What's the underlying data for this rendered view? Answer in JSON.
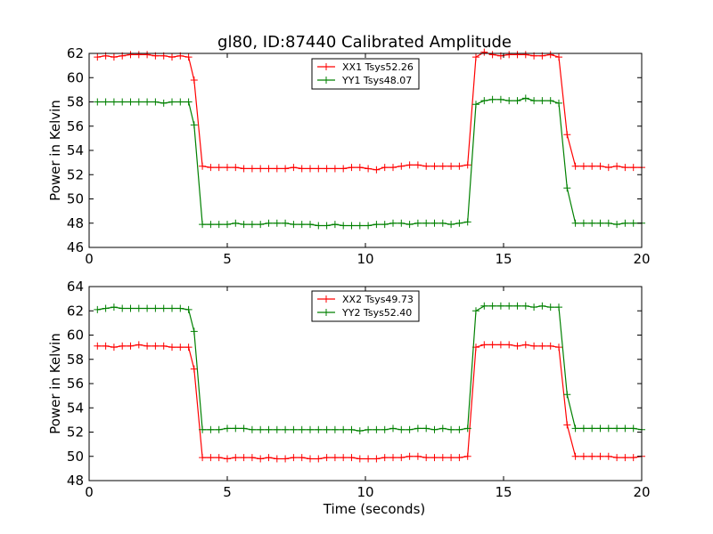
{
  "figure": {
    "title": "gl80, ID:87440 Calibrated Amplitude"
  },
  "chart_data": [
    {
      "type": "line",
      "title": "gl80, ID:87440 Calibrated Amplitude",
      "xlabel": "",
      "ylabel": "Power in Kelvin",
      "xlim": [
        0,
        20
      ],
      "ylim": [
        46,
        62
      ],
      "xticks": [
        "0",
        "5",
        "10",
        "15",
        "20"
      ],
      "yticks": [
        "46",
        "48",
        "50",
        "52",
        "54",
        "56",
        "58",
        "60",
        "62"
      ],
      "grid": false,
      "legend_position": "top-center",
      "x": [
        0.3,
        0.6,
        0.9,
        1.2,
        1.5,
        1.8,
        2.1,
        2.4,
        2.7,
        3.0,
        3.3,
        3.6,
        3.8,
        4.1,
        4.4,
        4.7,
        5.0,
        5.3,
        5.6,
        5.9,
        6.2,
        6.5,
        6.8,
        7.1,
        7.4,
        7.7,
        8.0,
        8.3,
        8.6,
        8.9,
        9.2,
        9.5,
        9.8,
        10.1,
        10.4,
        10.7,
        11.0,
        11.3,
        11.6,
        11.9,
        12.2,
        12.5,
        12.8,
        13.1,
        13.4,
        13.7,
        14.0,
        14.3,
        14.6,
        14.9,
        15.2,
        15.5,
        15.8,
        16.1,
        16.4,
        16.7,
        17.0,
        17.3,
        17.6,
        17.9,
        18.2,
        18.5,
        18.8,
        19.1,
        19.4,
        19.7,
        20.0
      ],
      "series": [
        {
          "name": "XX1 Tsys52.26",
          "color": "#ff0000",
          "values": [
            61.7,
            61.8,
            61.7,
            61.8,
            61.9,
            61.9,
            61.9,
            61.8,
            61.8,
            61.7,
            61.8,
            61.7,
            59.8,
            52.7,
            52.6,
            52.6,
            52.6,
            52.6,
            52.5,
            52.5,
            52.5,
            52.5,
            52.5,
            52.5,
            52.6,
            52.5,
            52.5,
            52.5,
            52.5,
            52.5,
            52.5,
            52.6,
            52.6,
            52.5,
            52.4,
            52.6,
            52.6,
            52.7,
            52.8,
            52.8,
            52.7,
            52.7,
            52.7,
            52.7,
            52.7,
            52.8,
            61.7,
            62.1,
            61.9,
            61.8,
            61.9,
            61.9,
            61.9,
            61.8,
            61.8,
            61.9,
            61.7,
            55.3,
            52.7,
            52.7,
            52.7,
            52.7,
            52.6,
            52.7,
            52.6,
            52.6,
            52.6
          ]
        },
        {
          "name": "YY1 Tsys48.07",
          "color": "#008000",
          "values": [
            58.0,
            58.0,
            58.0,
            58.0,
            58.0,
            58.0,
            58.0,
            58.0,
            57.9,
            58.0,
            58.0,
            58.0,
            56.1,
            47.9,
            47.9,
            47.9,
            47.9,
            48.0,
            47.9,
            47.9,
            47.9,
            48.0,
            48.0,
            48.0,
            47.9,
            47.9,
            47.9,
            47.8,
            47.8,
            47.9,
            47.8,
            47.8,
            47.8,
            47.8,
            47.9,
            47.9,
            48.0,
            48.0,
            47.9,
            48.0,
            48.0,
            48.0,
            48.0,
            47.9,
            48.0,
            48.1,
            57.8,
            58.1,
            58.2,
            58.2,
            58.1,
            58.1,
            58.3,
            58.1,
            58.1,
            58.1,
            57.9,
            50.9,
            48.0,
            48.0,
            48.0,
            48.0,
            48.0,
            47.9,
            48.0,
            48.0,
            48.0
          ]
        }
      ]
    },
    {
      "type": "line",
      "title": "",
      "xlabel": "Time (seconds)",
      "ylabel": "Power in Kelvin",
      "xlim": [
        0,
        20
      ],
      "ylim": [
        48,
        64
      ],
      "xticks": [
        "0",
        "5",
        "10",
        "15",
        "20"
      ],
      "yticks": [
        "48",
        "50",
        "52",
        "54",
        "56",
        "58",
        "60",
        "62",
        "64"
      ],
      "grid": false,
      "legend_position": "top-center",
      "x": [
        0.3,
        0.6,
        0.9,
        1.2,
        1.5,
        1.8,
        2.1,
        2.4,
        2.7,
        3.0,
        3.3,
        3.6,
        3.8,
        4.1,
        4.4,
        4.7,
        5.0,
        5.3,
        5.6,
        5.9,
        6.2,
        6.5,
        6.8,
        7.1,
        7.4,
        7.7,
        8.0,
        8.3,
        8.6,
        8.9,
        9.2,
        9.5,
        9.8,
        10.1,
        10.4,
        10.7,
        11.0,
        11.3,
        11.6,
        11.9,
        12.2,
        12.5,
        12.8,
        13.1,
        13.4,
        13.7,
        14.0,
        14.3,
        14.6,
        14.9,
        15.2,
        15.5,
        15.8,
        16.1,
        16.4,
        16.7,
        17.0,
        17.3,
        17.6,
        17.9,
        18.2,
        18.5,
        18.8,
        19.1,
        19.4,
        19.7,
        20.0
      ],
      "series": [
        {
          "name": "XX2 Tsys49.73",
          "color": "#ff0000",
          "values": [
            59.1,
            59.1,
            59.0,
            59.1,
            59.1,
            59.2,
            59.1,
            59.1,
            59.1,
            59.0,
            59.0,
            59.0,
            57.2,
            49.9,
            49.9,
            49.9,
            49.8,
            49.9,
            49.9,
            49.9,
            49.8,
            49.9,
            49.8,
            49.8,
            49.9,
            49.9,
            49.8,
            49.8,
            49.9,
            49.9,
            49.9,
            49.9,
            49.8,
            49.8,
            49.8,
            49.9,
            49.9,
            49.9,
            50.0,
            50.0,
            49.9,
            49.9,
            49.9,
            49.9,
            49.9,
            50.0,
            59.0,
            59.2,
            59.2,
            59.2,
            59.2,
            59.1,
            59.2,
            59.1,
            59.1,
            59.1,
            59.0,
            52.6,
            50.0,
            50.0,
            50.0,
            50.0,
            50.0,
            49.9,
            49.9,
            49.9,
            50.0
          ]
        },
        {
          "name": "YY2 Tsys52.40",
          "color": "#008000",
          "values": [
            62.1,
            62.2,
            62.3,
            62.2,
            62.2,
            62.2,
            62.2,
            62.2,
            62.2,
            62.2,
            62.2,
            62.1,
            60.3,
            52.2,
            52.2,
            52.2,
            52.3,
            52.3,
            52.3,
            52.2,
            52.2,
            52.2,
            52.2,
            52.2,
            52.2,
            52.2,
            52.2,
            52.2,
            52.2,
            52.2,
            52.2,
            52.2,
            52.1,
            52.2,
            52.2,
            52.2,
            52.3,
            52.2,
            52.2,
            52.3,
            52.3,
            52.2,
            52.3,
            52.2,
            52.2,
            52.3,
            62.0,
            62.4,
            62.4,
            62.4,
            62.4,
            62.4,
            62.4,
            62.3,
            62.4,
            62.3,
            62.3,
            55.1,
            52.3,
            52.3,
            52.3,
            52.3,
            52.3,
            52.3,
            52.3,
            52.3,
            52.2
          ]
        }
      ]
    }
  ]
}
